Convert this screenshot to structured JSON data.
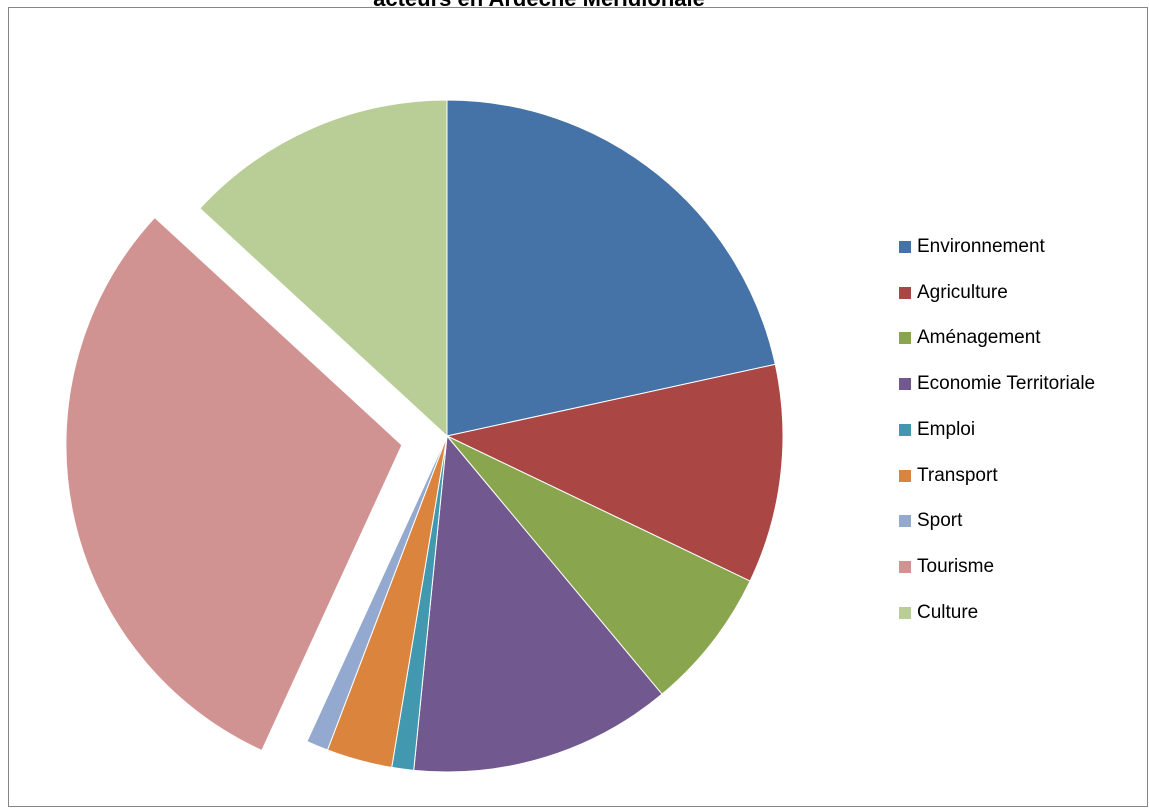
{
  "chart_data": {
    "type": "pie",
    "title": "acteurs en Ardèche Méridionale",
    "legend_position": "right",
    "slices": [
      {
        "label": "Environnement",
        "value": 20.5,
        "color": "#4572A7"
      },
      {
        "label": "Agriculture",
        "value": 10.0,
        "color": "#AA4643"
      },
      {
        "label": "Aménagement",
        "value": 6.5,
        "color": "#89A54E"
      },
      {
        "label": "Economie Territoriale",
        "value": 12.0,
        "color": "#71588F"
      },
      {
        "label": "Emploi",
        "value": 1.0,
        "color": "#4198AF"
      },
      {
        "label": "Transport",
        "value": 3.0,
        "color": "#DB843D"
      },
      {
        "label": "Sport",
        "value": 1.0,
        "color": "#93A9CF"
      },
      {
        "label": "Tourisme",
        "value": 28.5,
        "color": "#D19392",
        "exploded": true
      },
      {
        "label": "Culture",
        "value": 12.5,
        "color": "#B9CD96"
      }
    ]
  }
}
